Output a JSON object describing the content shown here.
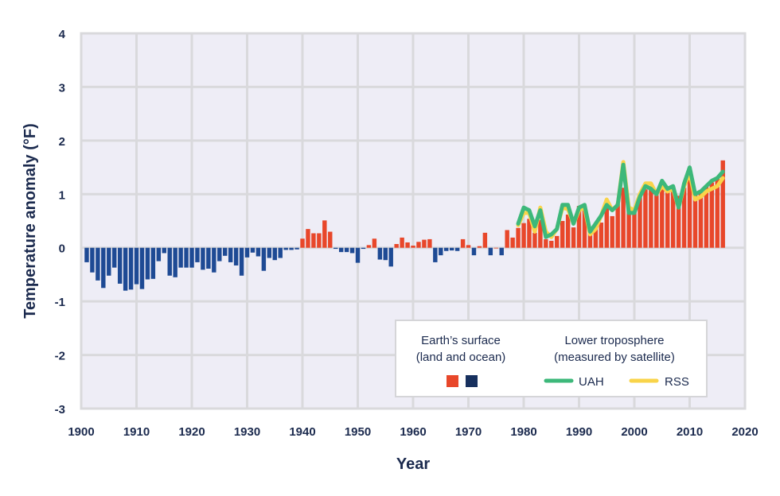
{
  "chart_data": {
    "type": "bar",
    "title": "",
    "xlabel": "Year",
    "ylabel": "Temperature anomaly (°F)",
    "xlim": [
      1900,
      2020
    ],
    "ylim": [
      -3,
      4
    ],
    "xticks": [
      "1900",
      "1910",
      "1920",
      "1930",
      "1940",
      "1950",
      "1960",
      "1970",
      "1980",
      "1990",
      "2000",
      "2010",
      "2020"
    ],
    "yticks": [
      "4",
      "3",
      "2",
      "1",
      "0",
      "-1",
      "-2",
      "-3"
    ],
    "grid": true,
    "legend_position": "bottom-right",
    "legend": {
      "surface_title_line1": "Earth’s surface",
      "surface_title_line2": "(land and ocean)",
      "satellite_title_line1": "Lower troposphere",
      "satellite_title_line2": "(measured by satellite)",
      "uah_label": "UAH",
      "rss_label": "RSS"
    },
    "colors": {
      "positive": "#e8472a",
      "negative": "#1e4a94",
      "uah": "#3db87a",
      "rss": "#f9d44a",
      "plot_bg": "#eeedf6",
      "grid": "#d9d9dc"
    },
    "surface_series": {
      "name": "Earth’s surface (land and ocean)",
      "years": [
        1901,
        1902,
        1903,
        1904,
        1905,
        1906,
        1907,
        1908,
        1909,
        1910,
        1911,
        1912,
        1913,
        1914,
        1915,
        1916,
        1917,
        1918,
        1919,
        1920,
        1921,
        1922,
        1923,
        1924,
        1925,
        1926,
        1927,
        1928,
        1929,
        1930,
        1931,
        1932,
        1933,
        1934,
        1935,
        1936,
        1937,
        1938,
        1939,
        1940,
        1941,
        1942,
        1943,
        1944,
        1945,
        1946,
        1947,
        1948,
        1949,
        1950,
        1951,
        1952,
        1953,
        1954,
        1955,
        1956,
        1957,
        1958,
        1959,
        1960,
        1961,
        1962,
        1963,
        1964,
        1965,
        1966,
        1967,
        1968,
        1969,
        1970,
        1971,
        1972,
        1973,
        1974,
        1975,
        1976,
        1977,
        1978,
        1979,
        1980,
        1981,
        1982,
        1983,
        1984,
        1985,
        1986,
        1987,
        1988,
        1989,
        1990,
        1991,
        1992,
        1993,
        1994,
        1995,
        1996,
        1997,
        1998,
        1999,
        2000,
        2001,
        2002,
        2003,
        2004,
        2005,
        2006,
        2007,
        2008,
        2009,
        2010,
        2011,
        2012,
        2013,
        2014,
        2015,
        2016
      ],
      "values": [
        -0.27,
        -0.46,
        -0.61,
        -0.75,
        -0.52,
        -0.37,
        -0.67,
        -0.8,
        -0.78,
        -0.68,
        -0.77,
        -0.59,
        -0.58,
        -0.25,
        -0.1,
        -0.52,
        -0.55,
        -0.37,
        -0.37,
        -0.37,
        -0.27,
        -0.41,
        -0.39,
        -0.46,
        -0.25,
        -0.15,
        -0.27,
        -0.33,
        -0.52,
        -0.18,
        -0.09,
        -0.16,
        -0.43,
        -0.19,
        -0.23,
        -0.19,
        -0.04,
        -0.04,
        -0.03,
        0.17,
        0.35,
        0.27,
        0.27,
        0.51,
        0.3,
        -0.02,
        -0.08,
        -0.08,
        -0.1,
        -0.28,
        -0.02,
        0.05,
        0.17,
        -0.22,
        -0.23,
        -0.35,
        0.07,
        0.19,
        0.1,
        0.04,
        0.11,
        0.15,
        0.16,
        -0.27,
        -0.14,
        -0.06,
        -0.05,
        -0.06,
        0.16,
        0.05,
        -0.14,
        0.03,
        0.28,
        -0.14,
        0.0,
        -0.14,
        0.33,
        0.19,
        0.37,
        0.46,
        0.54,
        0.28,
        0.52,
        0.16,
        0.13,
        0.22,
        0.5,
        0.62,
        0.38,
        0.78,
        0.7,
        0.38,
        0.4,
        0.47,
        0.74,
        0.59,
        0.83,
        1.12,
        0.72,
        0.72,
        0.97,
        1.09,
        1.1,
        0.98,
        1.2,
        1.12,
        1.1,
        0.97,
        1.12,
        1.3,
        1.02,
        1.08,
        1.16,
        1.22,
        1.32,
        1.63
      ]
    },
    "uah_series": {
      "name": "UAH",
      "years": [
        1979,
        1980,
        1981,
        1982,
        1983,
        1984,
        1985,
        1986,
        1987,
        1988,
        1989,
        1990,
        1991,
        1992,
        1993,
        1994,
        1995,
        1996,
        1997,
        1998,
        1999,
        2000,
        2001,
        2002,
        2003,
        2004,
        2005,
        2006,
        2007,
        2008,
        2009,
        2010,
        2011,
        2012,
        2013,
        2014,
        2015,
        2016
      ],
      "values": [
        0.45,
        0.75,
        0.7,
        0.4,
        0.7,
        0.2,
        0.25,
        0.35,
        0.8,
        0.8,
        0.45,
        0.75,
        0.8,
        0.3,
        0.45,
        0.6,
        0.8,
        0.7,
        0.8,
        1.55,
        0.65,
        0.65,
        0.95,
        1.15,
        1.1,
        1.0,
        1.25,
        1.1,
        1.15,
        0.75,
        1.2,
        1.5,
        1.0,
        1.05,
        1.15,
        1.25,
        1.3,
        1.42
      ]
    },
    "rss_series": {
      "name": "RSS",
      "years": [
        1979,
        1980,
        1981,
        1982,
        1983,
        1984,
        1985,
        1986,
        1987,
        1988,
        1989,
        1990,
        1991,
        1992,
        1993,
        1994,
        1995,
        1996,
        1997,
        1998,
        1999,
        2000,
        2001,
        2002,
        2003,
        2004,
        2005,
        2006,
        2007,
        2008,
        2009,
        2010,
        2011,
        2012,
        2013,
        2014,
        2015,
        2016
      ],
      "values": [
        0.42,
        0.65,
        0.65,
        0.3,
        0.75,
        0.3,
        0.2,
        0.35,
        0.75,
        0.72,
        0.45,
        0.7,
        0.75,
        0.25,
        0.35,
        0.6,
        0.9,
        0.7,
        0.8,
        1.6,
        0.75,
        0.7,
        1.0,
        1.2,
        1.2,
        1.0,
        1.15,
        1.05,
        1.1,
        0.75,
        1.15,
        1.4,
        0.9,
        0.95,
        1.05,
        1.1,
        1.15,
        1.3
      ]
    }
  }
}
